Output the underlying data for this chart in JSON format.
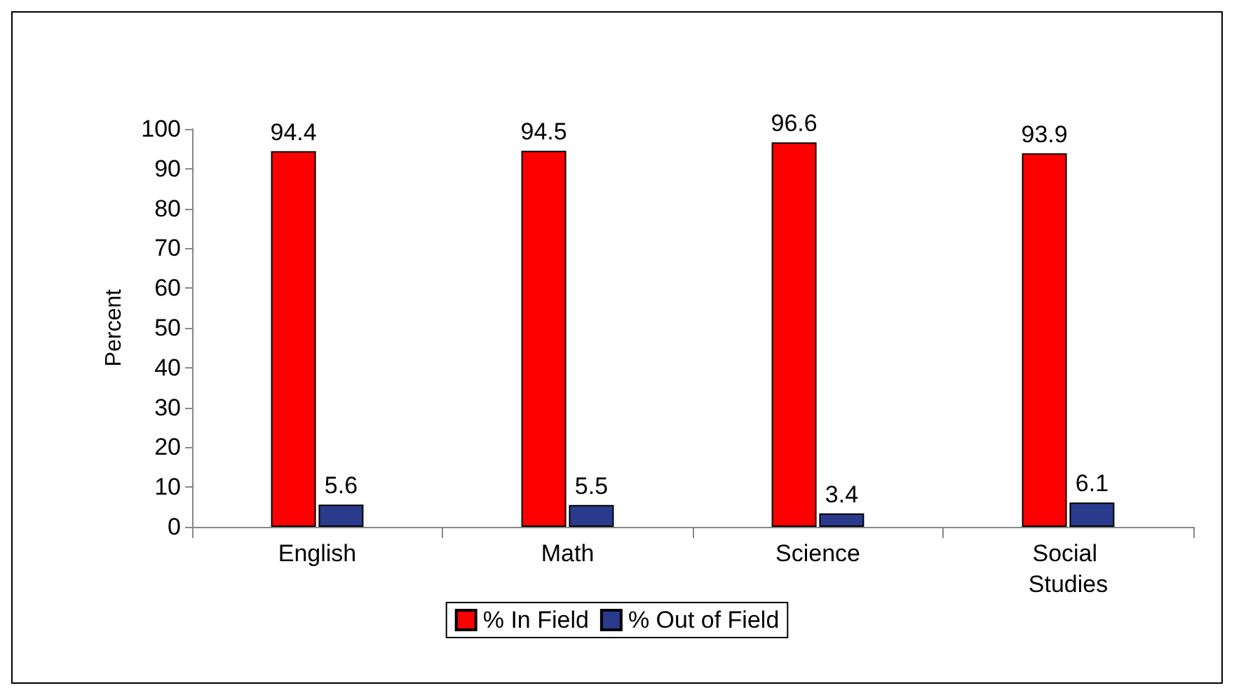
{
  "chart_data": {
    "type": "bar",
    "ylabel": "Percent",
    "categories": [
      "English",
      "Math",
      "Science",
      "Social Studies"
    ],
    "series": [
      {
        "name": "% In Field",
        "color": "#ff0000",
        "values": [
          94.4,
          94.5,
          96.6,
          93.9
        ]
      },
      {
        "name": "% Out of Field",
        "color": "#2a3a8c",
        "values": [
          5.6,
          5.5,
          3.4,
          6.1
        ]
      }
    ],
    "ylim": [
      0,
      100
    ],
    "yticks": [
      0,
      10,
      20,
      30,
      40,
      50,
      60,
      70,
      80,
      90,
      100
    ],
    "grid": false,
    "legend": "bottom",
    "data_labels": true
  }
}
